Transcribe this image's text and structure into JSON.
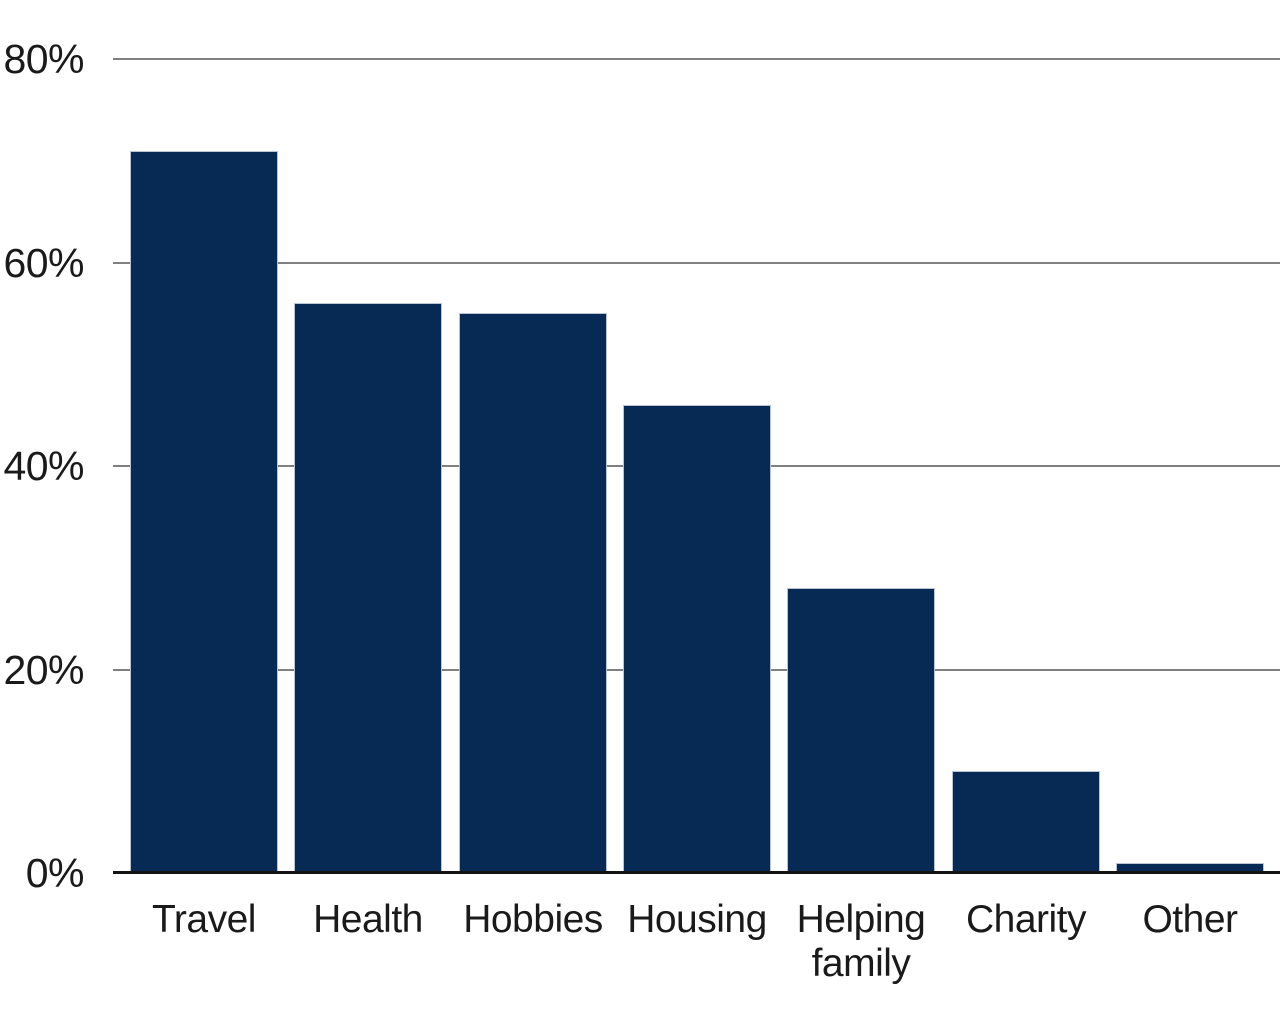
{
  "chart_data": {
    "type": "bar",
    "title": "",
    "categories": [
      "Travel",
      "Health",
      "Hobbies",
      "Housing",
      "Helping family",
      "Charity",
      "Other"
    ],
    "values": [
      71,
      56,
      55,
      46,
      28,
      10,
      1
    ],
    "unit": "%",
    "xlabel": "",
    "ylabel": "",
    "ylim": [
      0,
      80
    ],
    "yticks": [
      0,
      20,
      40,
      60,
      80
    ],
    "ytick_labels": [
      "0%",
      "20%",
      "40%",
      "60%",
      "80%"
    ],
    "grid": true,
    "legend": false,
    "colors": {
      "bar_fill": "#062a53",
      "bar_stroke": "#b9c4d3",
      "gridline": "#808080",
      "axis_line": "#141414",
      "text": "#1a1a1a",
      "background": "#ffffff"
    }
  }
}
